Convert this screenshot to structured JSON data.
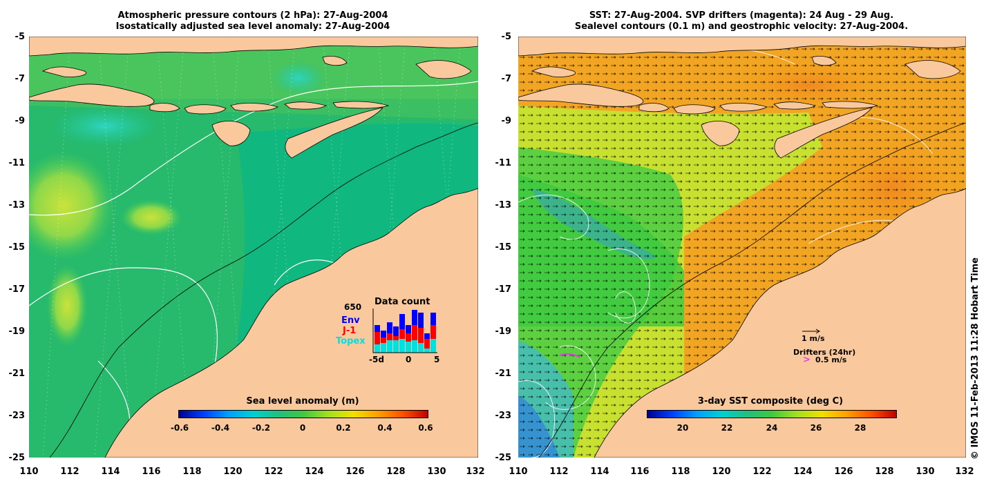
{
  "left_panel": {
    "title_line1": "Atmospheric pressure contours (2 hPa): 27-Aug-2004",
    "title_line2": "Isostatically adjusted sea level anomaly: 27-Aug-2004",
    "colorbar_title": "Sea level anomaly (m)",
    "colorbar_ticks": [
      "-0.6",
      "-0.4",
      "-0.2",
      "0",
      "0.2",
      "0.4",
      "0.6"
    ],
    "data_count": {
      "total": "650",
      "title": "Data count",
      "legend": [
        "Env",
        "J-1",
        "Topex"
      ],
      "xticks": [
        "-5d",
        "0",
        "5"
      ]
    }
  },
  "right_panel": {
    "title_line1": "SST: 27-Aug-2004. SVP drifters (magenta): 24 Aug - 29 Aug.",
    "title_line2": "Sealevel contours (0.1 m) and geostrophic velocity: 27-Aug-2004.",
    "colorbar_title": "3-day SST composite (deg C)",
    "colorbar_ticks": [
      "20",
      "22",
      "24",
      "26",
      "28"
    ],
    "velocity_scale": "1 m/s",
    "drifters_label": "Drifters (24hr)",
    "drifters_scale": "0.5 m/s"
  },
  "axes": {
    "x_ticks": [
      "110",
      "112",
      "114",
      "116",
      "118",
      "120",
      "122",
      "124",
      "126",
      "128",
      "130",
      "132"
    ],
    "y_ticks": [
      "-5",
      "-7",
      "-9",
      "-11",
      "-13",
      "-15",
      "-17",
      "-19",
      "-21",
      "-23",
      "-25"
    ]
  },
  "credit": "© IMOS 11-Feb-2013 11:28 Hobart Time",
  "colors": {
    "land": "#f9c89c",
    "ocean_sla": "#1fbf72",
    "sst_warm": "#f4a21a",
    "sst_green": "#3fc93f",
    "env": "#0000ff",
    "j1": "#ff0000",
    "topex": "#00e0e0",
    "drifter": "#e040e0"
  }
}
